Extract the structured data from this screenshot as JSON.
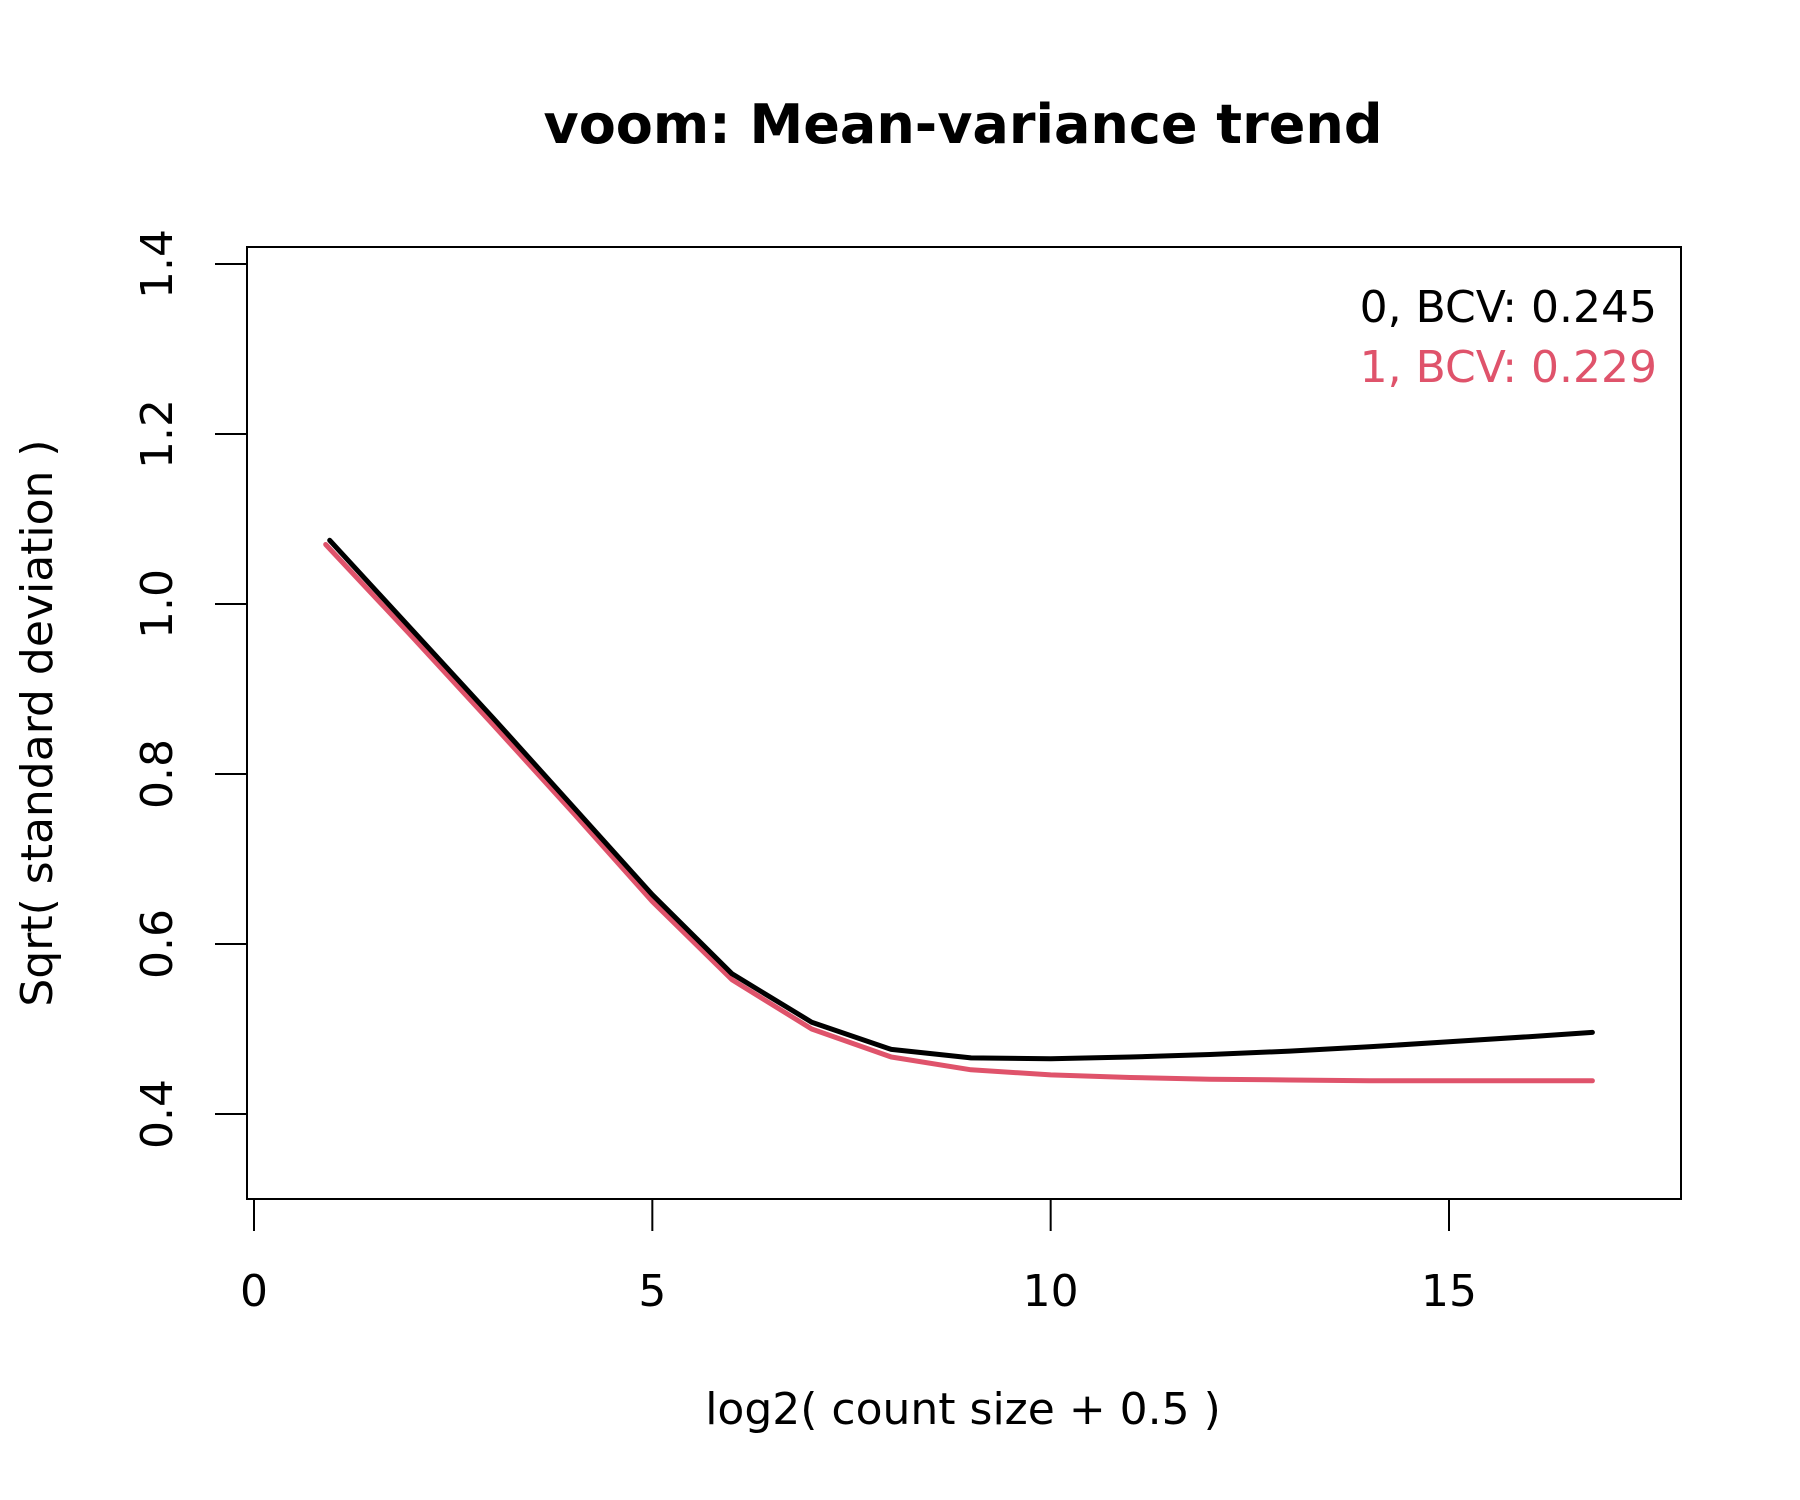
{
  "chart_data": {
    "type": "line",
    "title": "voom: Mean-variance trend",
    "xlabel": "log2( count size + 0.5 )",
    "ylabel": "Sqrt( standard deviation )",
    "xlim": [
      0,
      18
    ],
    "ylim": [
      0.3,
      1.42
    ],
    "xticks": [
      0,
      5,
      10,
      15
    ],
    "xtick_labels": [
      "0",
      "5",
      "10",
      "15"
    ],
    "yticks": [
      0.4,
      0.6,
      0.8,
      1.0,
      1.2,
      1.4
    ],
    "ytick_labels": [
      "0.4",
      "0.6",
      "0.8",
      "1.0",
      "1.2",
      "1.4"
    ],
    "grid": false,
    "legend_position": "top-right",
    "series": [
      {
        "name": "0, BCV: 0.245",
        "color": "#000000",
        "x": [
          0.95,
          2,
          3,
          4,
          5,
          6,
          7,
          8,
          9,
          10,
          11,
          12,
          13,
          14,
          15,
          16,
          16.8
        ],
        "y": [
          1.075,
          0.968,
          0.866,
          0.762,
          0.658,
          0.565,
          0.508,
          0.476,
          0.466,
          0.465,
          0.467,
          0.47,
          0.474,
          0.479,
          0.485,
          0.491,
          0.496
        ]
      },
      {
        "name": "1, BCV: 0.229",
        "color": "#df536b",
        "x": [
          0.9,
          2,
          3,
          4,
          5,
          6,
          7,
          8,
          9,
          10,
          11,
          12,
          13,
          14,
          15,
          16,
          16.8
        ],
        "y": [
          1.07,
          0.96,
          0.858,
          0.755,
          0.65,
          0.558,
          0.5,
          0.467,
          0.452,
          0.446,
          0.443,
          0.441,
          0.44,
          0.439,
          0.439,
          0.439,
          0.439
        ]
      }
    ]
  }
}
